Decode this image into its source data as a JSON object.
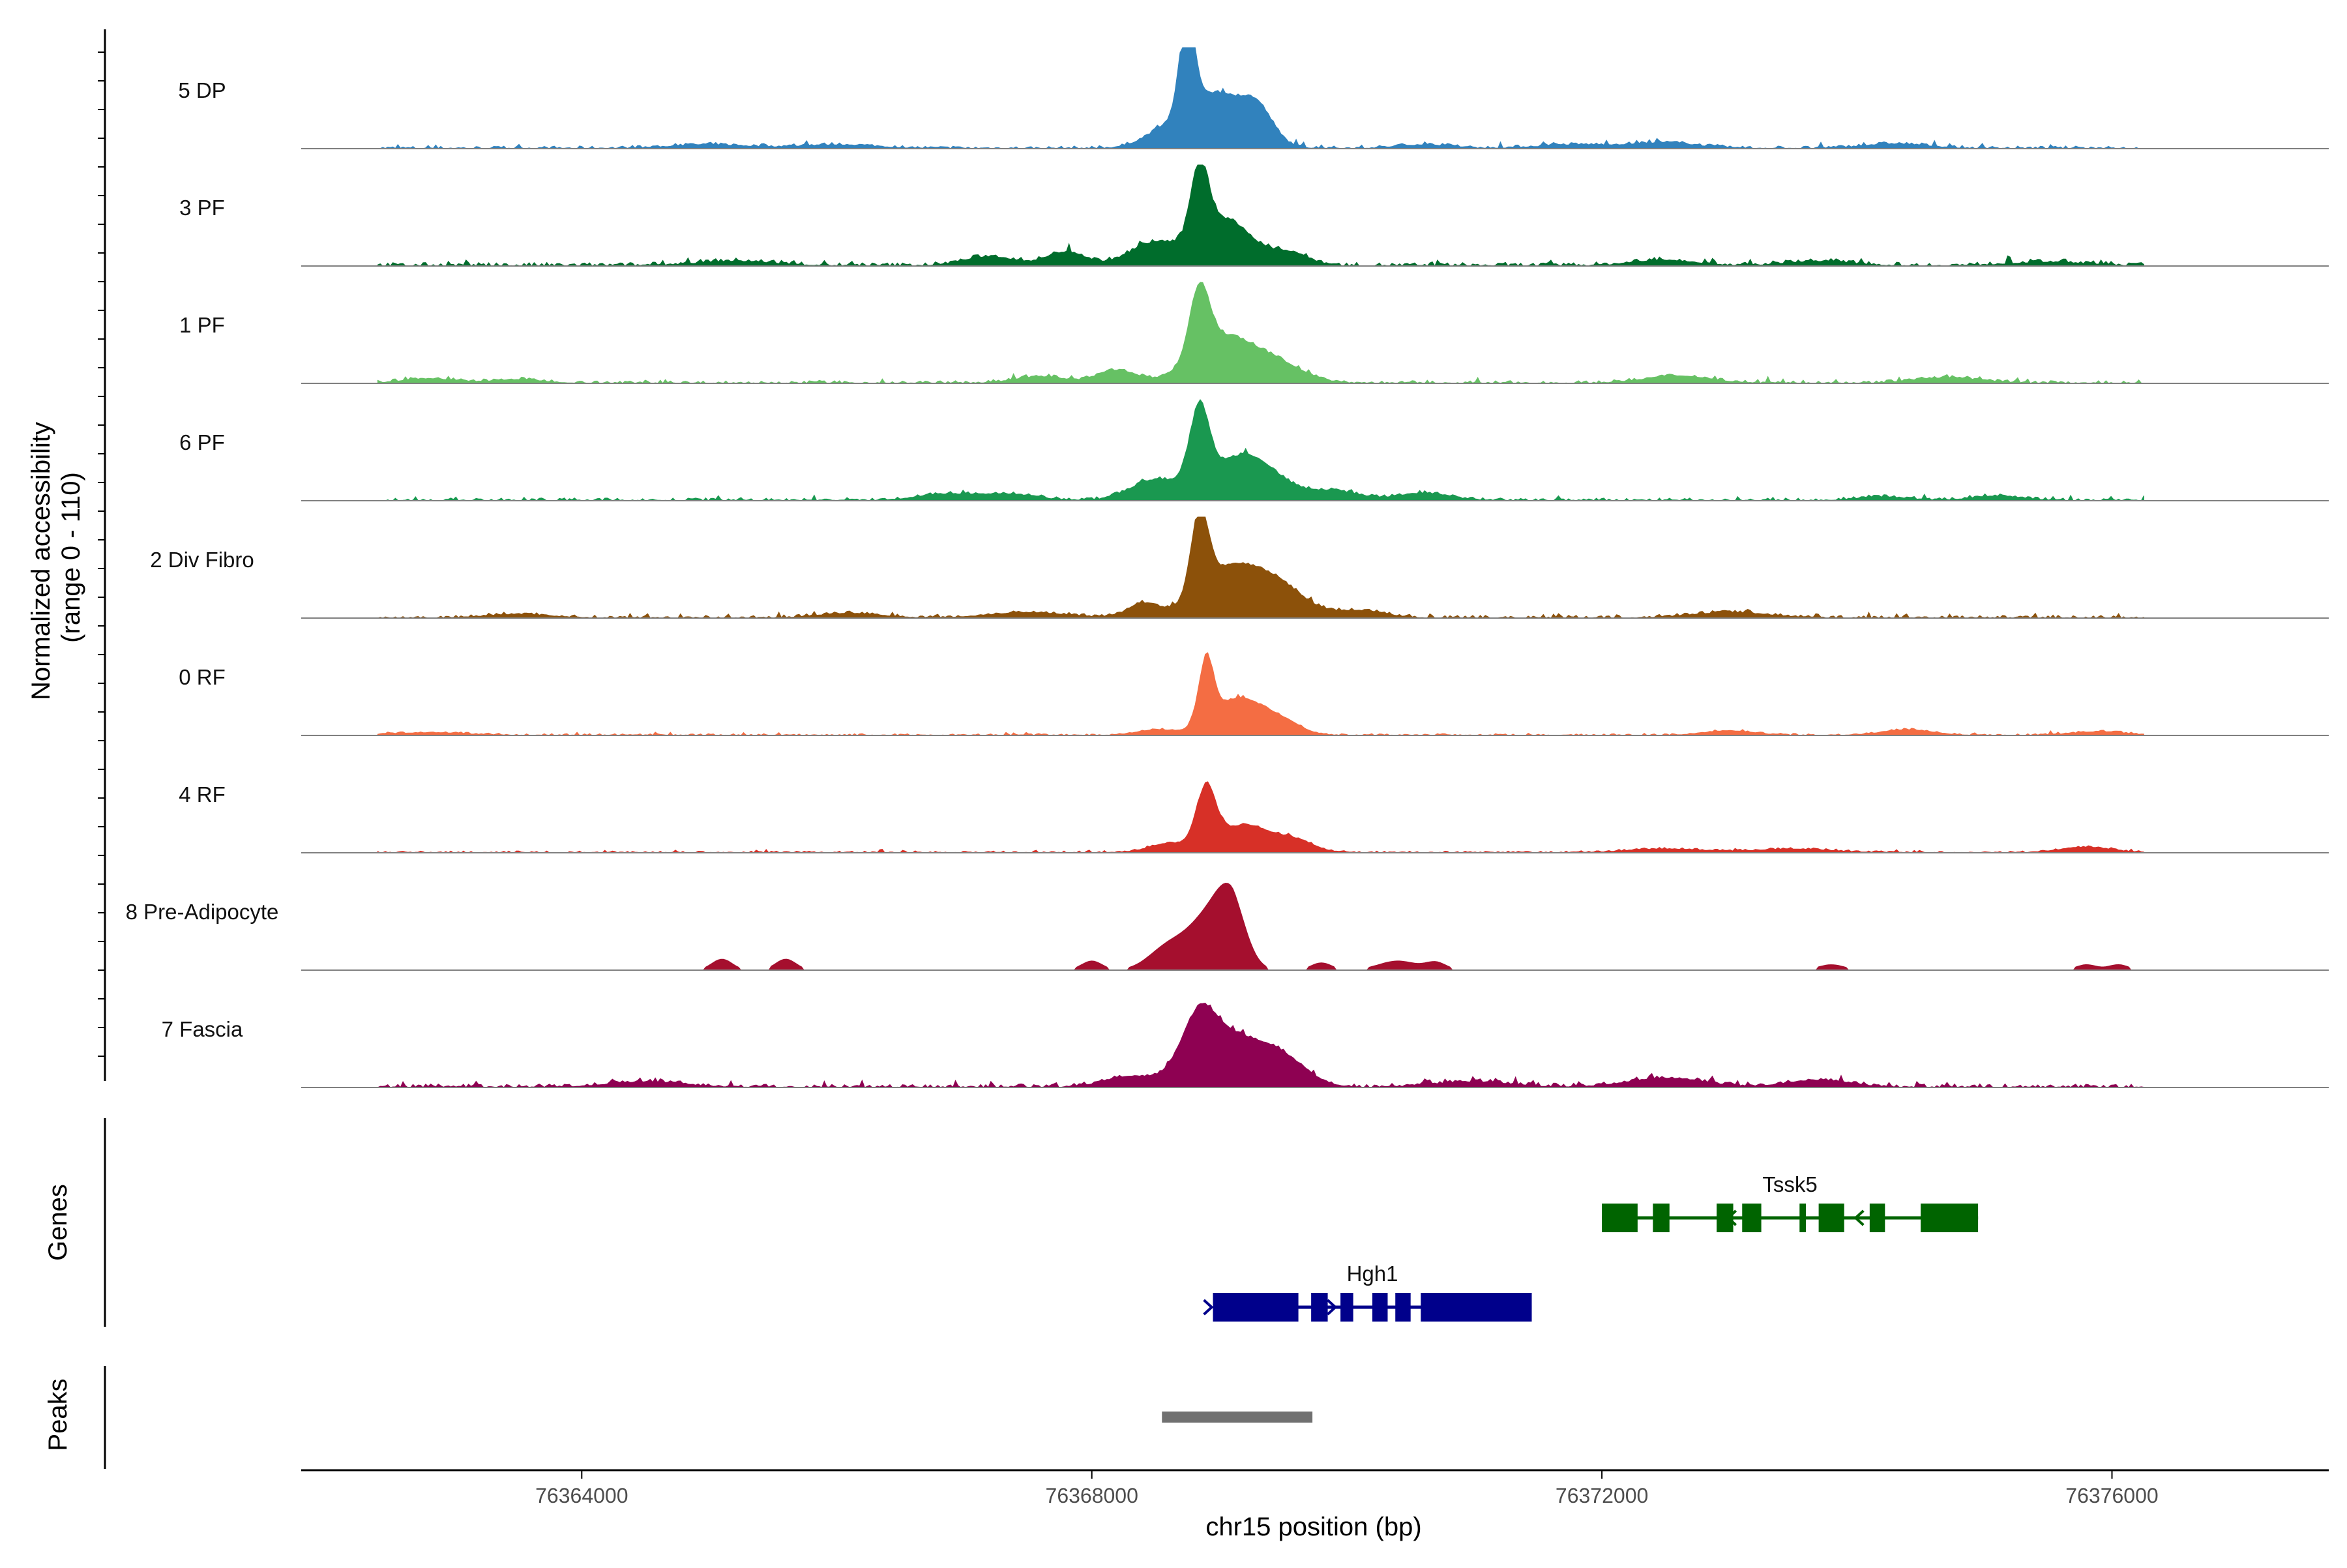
{
  "chart_data": {
    "type": "area",
    "title": "",
    "chromosome": "chr15",
    "xlabel": "chr15 position (bp)",
    "ylabel_line1": "Normalized accessibility",
    "ylabel_line2": "(range 0 - 110)",
    "y_range": [
      0,
      110
    ],
    "x_range": [
      76361800,
      76377700
    ],
    "x_ticks": [
      76364000,
      76368000,
      76372000,
      76376000
    ],
    "x_tick_labels": [
      "76364000",
      "76368000",
      "76372000",
      "76376000"
    ],
    "tracks": [
      {
        "name": "5 DP",
        "color": "#3182bd",
        "peaks": [
          [
            76368750,
            105,
            60
          ],
          [
            76368950,
            60,
            250
          ],
          [
            76369300,
            30,
            120
          ],
          [
            76368500,
            8,
            150
          ],
          [
            76365000,
            4,
            300
          ],
          [
            76366000,
            4,
            300
          ],
          [
            76370600,
            4,
            200
          ],
          [
            76371800,
            4,
            300
          ],
          [
            76372500,
            6,
            250
          ],
          [
            76374300,
            5,
            250
          ]
        ],
        "noise": 3,
        "sparse": false
      },
      {
        "name": "3 PF",
        "color": "#006d2c",
        "peaks": [
          [
            76368850,
            85,
            70
          ],
          [
            76369050,
            50,
            200
          ],
          [
            76368500,
            25,
            200
          ],
          [
            76369550,
            14,
            150
          ],
          [
            76367800,
            15,
            150
          ],
          [
            76367200,
            10,
            200
          ],
          [
            76365200,
            5,
            300
          ],
          [
            76372500,
            6,
            250
          ],
          [
            76373700,
            5,
            250
          ],
          [
            76375500,
            4,
            300
          ]
        ],
        "noise": 4,
        "sparse": false
      },
      {
        "name": "1 PF",
        "color": "#66c164",
        "peaks": [
          [
            76368850,
            75,
            80
          ],
          [
            76369050,
            50,
            250
          ],
          [
            76369500,
            15,
            200
          ],
          [
            76368200,
            14,
            150
          ],
          [
            76367600,
            7,
            200
          ],
          [
            76372600,
            8,
            250
          ],
          [
            76374700,
            6,
            250
          ],
          [
            76362800,
            5,
            200
          ],
          [
            76363500,
            4,
            200
          ]
        ],
        "noise": 3,
        "sparse": false
      },
      {
        "name": "6 PF",
        "color": "#1a9850",
        "peaks": [
          [
            76368850,
            85,
            80
          ],
          [
            76369200,
            50,
            250
          ],
          [
            76368500,
            22,
            200
          ],
          [
            76369900,
            10,
            200
          ],
          [
            76370600,
            8,
            200
          ],
          [
            76367300,
            7,
            250
          ],
          [
            76366800,
            6,
            200
          ],
          [
            76375100,
            5,
            200
          ],
          [
            76374200,
            4,
            200
          ]
        ],
        "noise": 3,
        "sparse": false
      },
      {
        "name": "2 Div Fibro",
        "color": "#8c510a",
        "peaks": [
          [
            76368850,
            90,
            70
          ],
          [
            76369100,
            55,
            250
          ],
          [
            76369500,
            25,
            200
          ],
          [
            76368400,
            15,
            120
          ],
          [
            76367500,
            6,
            300
          ],
          [
            76373000,
            6,
            300
          ],
          [
            76370100,
            8,
            200
          ],
          [
            76366100,
            5,
            250
          ],
          [
            76363500,
            4,
            250
          ]
        ],
        "noise": 3,
        "sparse": false
      },
      {
        "name": "0 RF",
        "color": "#f46d43",
        "peaks": [
          [
            76368900,
            70,
            60
          ],
          [
            76369150,
            40,
            200
          ],
          [
            76369500,
            12,
            150
          ],
          [
            76368500,
            6,
            150
          ],
          [
            76373000,
            5,
            200
          ],
          [
            76374400,
            6,
            200
          ],
          [
            76375900,
            4,
            200
          ],
          [
            76362800,
            3,
            300
          ]
        ],
        "noise": 2,
        "sparse": false
      },
      {
        "name": "4 RF",
        "color": "#d73027",
        "peaks": [
          [
            76368900,
            65,
            80
          ],
          [
            76369200,
            30,
            200
          ],
          [
            76369600,
            12,
            150
          ],
          [
            76368600,
            10,
            150
          ],
          [
            76375800,
            6,
            200
          ],
          [
            76372500,
            4,
            300
          ],
          [
            76373500,
            4,
            300
          ]
        ],
        "noise": 2,
        "sparse": false
      },
      {
        "name": "8 Pre-Adipocyte",
        "color": "#a50f2e",
        "peaks": [
          [
            76369100,
            70,
            120
          ],
          [
            76368900,
            50,
            150
          ],
          [
            76368600,
            25,
            150
          ],
          [
            76365100,
            12,
            80
          ],
          [
            76365600,
            12,
            80
          ],
          [
            76368000,
            10,
            80
          ],
          [
            76369800,
            8,
            80
          ],
          [
            76370400,
            10,
            150
          ],
          [
            76370700,
            8,
            80
          ],
          [
            76373800,
            6,
            100
          ],
          [
            76375800,
            6,
            80
          ],
          [
            76376050,
            6,
            80
          ]
        ],
        "noise": 0,
        "sparse": true
      },
      {
        "name": "7 Fascia",
        "color": "#8e0152",
        "peaks": [
          [
            76368850,
            60,
            150
          ],
          [
            76369100,
            50,
            250
          ],
          [
            76369500,
            25,
            200
          ],
          [
            76368300,
            12,
            200
          ],
          [
            76372500,
            10,
            300
          ],
          [
            76373700,
            8,
            250
          ],
          [
            76364500,
            6,
            300
          ],
          [
            76371000,
            6,
            300
          ]
        ],
        "noise": 4,
        "sparse": false
      }
    ],
    "genes_panel_label": "Genes",
    "genes": [
      {
        "name": "Tssk5",
        "color": "#006400",
        "strand": "-",
        "start": 76372000,
        "end": 76374950,
        "exons": [
          [
            76372000,
            76372280
          ],
          [
            76372400,
            76372530
          ],
          [
            76372900,
            76373030
          ],
          [
            76373100,
            76373250
          ],
          [
            76373550,
            76373600
          ],
          [
            76373700,
            76373900
          ],
          [
            76374100,
            76374220
          ],
          [
            76374500,
            76374950
          ]
        ],
        "arrows": [
          76373000,
          76374000
        ]
      },
      {
        "name": "Hgh1",
        "color": "#00008b",
        "strand": "+",
        "start": 76368950,
        "end": 76371450,
        "exons": [
          [
            76368950,
            76369620
          ],
          [
            76369720,
            76369850
          ],
          [
            76369950,
            76370050
          ],
          [
            76370200,
            76370320
          ],
          [
            76370380,
            76370500
          ],
          [
            76370580,
            76371450
          ]
        ],
        "arrows": [
          76368930,
          76369900
        ]
      }
    ],
    "peaks_panel_label": "Peaks",
    "peak_regions": [
      [
        76368550,
        76369730
      ]
    ],
    "peak_color": "#707070"
  }
}
